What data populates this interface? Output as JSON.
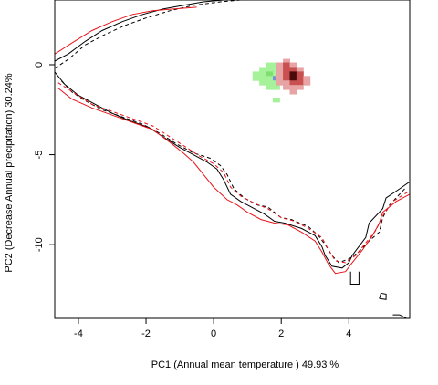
{
  "chart_data": {
    "type": "contour-density",
    "xlabel": "PC1 (Annual mean temperature ) 49.93 %",
    "ylabel": "PC2 (Decrease Annual precipitation) 30.24%",
    "xlim": [
      -4.7,
      5.8
    ],
    "ylim": [
      -14.1,
      3.6
    ],
    "x_ticks": [
      -4,
      -2,
      0,
      2,
      4
    ],
    "y_ticks": [
      0,
      -5,
      -10
    ],
    "grid": false,
    "legend": "none",
    "colors": {
      "black": "#000000",
      "red": "#e8141a",
      "green": "#a6f29a",
      "green_dark": "#7fe070",
      "blue": "#7a8fd6",
      "density_low": "#e8a4a4",
      "density_mid": "#c85050",
      "density_high": "#4a0a0a"
    },
    "contours": [
      {
        "color": "black",
        "style": "solid",
        "points": [
          [
            -4.7,
            0.2
          ],
          [
            -4.3,
            0.6
          ],
          [
            -3.8,
            1.3
          ],
          [
            -3.3,
            1.9
          ],
          [
            -2.7,
            2.4
          ],
          [
            -2.1,
            2.8
          ],
          [
            -1.5,
            3.1
          ],
          [
            -0.9,
            3.3
          ],
          [
            -0.3,
            3.5
          ],
          [
            0.3,
            3.6
          ]
        ]
      },
      {
        "color": "black",
        "style": "solid",
        "points": [
          [
            -4.7,
            -0.4
          ],
          [
            -4.4,
            -1.1
          ],
          [
            -4.0,
            -1.7
          ],
          [
            -3.5,
            -2.2
          ],
          [
            -3.0,
            -2.7
          ],
          [
            -2.5,
            -3.1
          ],
          [
            -1.9,
            -3.5
          ],
          [
            -1.5,
            -4.0
          ],
          [
            -1.0,
            -4.6
          ],
          [
            -0.6,
            -5.0
          ],
          [
            -0.2,
            -5.4
          ],
          [
            0.1,
            -5.8
          ],
          [
            0.3,
            -6.4
          ],
          [
            0.5,
            -7.2
          ],
          [
            0.8,
            -7.6
          ],
          [
            1.2,
            -8.0
          ],
          [
            1.5,
            -8.3
          ],
          [
            1.8,
            -8.7
          ],
          [
            2.1,
            -8.8
          ],
          [
            2.6,
            -9.1
          ],
          [
            3.0,
            -9.5
          ],
          [
            3.2,
            -10.1
          ],
          [
            3.3,
            -10.6
          ],
          [
            3.5,
            -11.2
          ],
          [
            3.8,
            -11.3
          ],
          [
            4.0,
            -11.0
          ],
          [
            4.1,
            -10.6
          ],
          [
            4.3,
            -10.1
          ],
          [
            4.5,
            -9.6
          ],
          [
            4.6,
            -8.8
          ],
          [
            5.0,
            -8.0
          ],
          [
            5.1,
            -7.4
          ],
          [
            5.5,
            -6.9
          ],
          [
            5.8,
            -6.5
          ]
        ]
      },
      {
        "color": "black",
        "style": "solid",
        "points": [
          [
            4.05,
            -11.5
          ],
          [
            4.05,
            -12.2
          ],
          [
            4.3,
            -12.2
          ],
          [
            4.3,
            -11.5
          ]
        ]
      },
      {
        "color": "black",
        "style": "solid",
        "points": [
          [
            4.9,
            -13.0
          ],
          [
            4.95,
            -12.7
          ],
          [
            5.1,
            -12.75
          ],
          [
            5.1,
            -13.05
          ],
          [
            4.9,
            -13.0
          ]
        ]
      },
      {
        "color": "black",
        "style": "solid",
        "points": [
          [
            5.3,
            -13.9
          ],
          [
            5.5,
            -13.9
          ],
          [
            5.7,
            -14.1
          ]
        ]
      },
      {
        "color": "black",
        "style": "dashed",
        "points": [
          [
            -4.7,
            -0.2
          ],
          [
            -4.3,
            0.3
          ],
          [
            -3.8,
            1.1
          ],
          [
            -3.2,
            1.7
          ],
          [
            -2.6,
            2.2
          ],
          [
            -2.0,
            2.6
          ],
          [
            -1.3,
            3.0
          ],
          [
            -0.6,
            3.3
          ],
          [
            0.2,
            3.5
          ],
          [
            0.8,
            3.6
          ]
        ]
      },
      {
        "color": "black",
        "style": "dashed",
        "points": [
          [
            -4.5,
            -0.9
          ],
          [
            -4.2,
            -1.5
          ],
          [
            -3.8,
            -2.0
          ],
          [
            -3.3,
            -2.5
          ],
          [
            -2.7,
            -2.9
          ],
          [
            -2.1,
            -3.3
          ],
          [
            -1.6,
            -3.8
          ],
          [
            -1.1,
            -4.4
          ],
          [
            -0.6,
            -4.9
          ],
          [
            -0.1,
            -5.2
          ],
          [
            0.2,
            -5.6
          ],
          [
            0.4,
            -6.1
          ],
          [
            0.6,
            -6.9
          ],
          [
            0.9,
            -7.4
          ],
          [
            1.3,
            -7.8
          ],
          [
            1.6,
            -7.9
          ],
          [
            2.0,
            -8.5
          ],
          [
            2.3,
            -8.6
          ],
          [
            2.8,
            -9.0
          ],
          [
            3.1,
            -9.5
          ],
          [
            3.3,
            -10.0
          ],
          [
            3.5,
            -10.6
          ],
          [
            3.7,
            -11.0
          ],
          [
            4.0,
            -10.8
          ],
          [
            4.3,
            -10.4
          ],
          [
            4.6,
            -9.8
          ],
          [
            4.9,
            -9.3
          ],
          [
            5.0,
            -8.5
          ],
          [
            5.2,
            -7.8
          ],
          [
            5.5,
            -7.2
          ],
          [
            5.7,
            -6.8
          ]
        ]
      },
      {
        "color": "red",
        "style": "solid",
        "points": [
          [
            -4.7,
            0.6
          ],
          [
            -4.2,
            1.2
          ],
          [
            -3.6,
            1.9
          ],
          [
            -3.0,
            2.4
          ],
          [
            -2.4,
            2.8
          ],
          [
            -1.8,
            3.0
          ],
          [
            -1.2,
            3.1
          ],
          [
            -0.5,
            3.2
          ]
        ]
      },
      {
        "color": "red",
        "style": "solid",
        "points": [
          [
            -4.6,
            -1.3
          ],
          [
            -4.2,
            -1.9
          ],
          [
            -3.6,
            -2.4
          ],
          [
            -3.0,
            -2.8
          ],
          [
            -2.4,
            -3.2
          ],
          [
            -1.8,
            -3.6
          ],
          [
            -1.3,
            -4.3
          ],
          [
            -0.9,
            -4.9
          ],
          [
            -0.6,
            -5.4
          ],
          [
            -0.3,
            -6.1
          ],
          [
            0.0,
            -6.8
          ],
          [
            0.4,
            -7.5
          ],
          [
            0.7,
            -7.8
          ],
          [
            1.0,
            -8.2
          ],
          [
            1.4,
            -8.6
          ],
          [
            1.8,
            -8.8
          ],
          [
            2.2,
            -8.9
          ],
          [
            2.6,
            -9.3
          ],
          [
            3.0,
            -9.8
          ],
          [
            3.2,
            -10.4
          ],
          [
            3.4,
            -11.1
          ],
          [
            3.6,
            -11.6
          ],
          [
            3.9,
            -11.5
          ],
          [
            4.1,
            -11.0
          ],
          [
            4.4,
            -10.3
          ],
          [
            4.7,
            -9.5
          ],
          [
            4.9,
            -8.8
          ],
          [
            5.0,
            -8.2
          ],
          [
            5.4,
            -7.6
          ],
          [
            5.8,
            -7.2
          ]
        ]
      },
      {
        "color": "red",
        "style": "dashed",
        "points": [
          [
            -4.6,
            -1.0
          ],
          [
            -4.1,
            -1.6
          ],
          [
            -3.6,
            -2.2
          ],
          [
            -3.0,
            -2.6
          ],
          [
            -2.4,
            -3.0
          ],
          [
            -1.8,
            -3.4
          ],
          [
            -1.3,
            -4.0
          ],
          [
            -0.8,
            -4.6
          ],
          [
            -0.4,
            -5.1
          ],
          [
            0.0,
            -5.5
          ],
          [
            0.3,
            -6.0
          ],
          [
            0.5,
            -6.8
          ],
          [
            0.8,
            -7.3
          ],
          [
            1.2,
            -7.7
          ],
          [
            1.6,
            -8.0
          ],
          [
            2.0,
            -8.5
          ],
          [
            2.4,
            -8.7
          ],
          [
            2.8,
            -9.1
          ],
          [
            3.2,
            -9.6
          ],
          [
            3.4,
            -10.3
          ],
          [
            3.6,
            -10.9
          ],
          [
            3.9,
            -11.0
          ],
          [
            4.2,
            -10.6
          ],
          [
            4.5,
            -9.9
          ],
          [
            4.8,
            -9.2
          ],
          [
            5.0,
            -8.4
          ],
          [
            5.3,
            -7.6
          ],
          [
            5.8,
            -7.0
          ]
        ]
      }
    ],
    "density_cells": [
      {
        "x": 1.65,
        "y": 0.0,
        "c": "green"
      },
      {
        "x": 1.85,
        "y": 0.0,
        "c": "green"
      },
      {
        "x": 1.45,
        "y": -0.25,
        "c": "green"
      },
      {
        "x": 1.65,
        "y": -0.25,
        "c": "green"
      },
      {
        "x": 1.85,
        "y": -0.25,
        "c": "green"
      },
      {
        "x": 1.25,
        "y": -0.5,
        "c": "green"
      },
      {
        "x": 1.45,
        "y": -0.5,
        "c": "green"
      },
      {
        "x": 1.65,
        "y": -0.5,
        "c": "green_dark"
      },
      {
        "x": 1.85,
        "y": -0.5,
        "c": "green"
      },
      {
        "x": 1.25,
        "y": -0.75,
        "c": "green"
      },
      {
        "x": 1.45,
        "y": -0.75,
        "c": "green"
      },
      {
        "x": 1.65,
        "y": -0.75,
        "c": "green"
      },
      {
        "x": 1.85,
        "y": -0.75,
        "c": "blue"
      },
      {
        "x": 1.45,
        "y": -1.0,
        "c": "green"
      },
      {
        "x": 1.65,
        "y": -1.0,
        "c": "green"
      },
      {
        "x": 1.85,
        "y": -1.0,
        "c": "green"
      },
      {
        "x": 1.65,
        "y": -1.25,
        "c": "green"
      },
      {
        "x": 1.85,
        "y": -1.25,
        "c": "green"
      },
      {
        "x": 1.85,
        "y": -1.95,
        "c": "green"
      },
      {
        "x": 2.15,
        "y": 0.2,
        "c": "density_low"
      },
      {
        "x": 1.95,
        "y": 0.0,
        "c": "density_low"
      },
      {
        "x": 2.15,
        "y": 0.0,
        "c": "density_mid"
      },
      {
        "x": 2.35,
        "y": 0.0,
        "c": "density_low"
      },
      {
        "x": 1.95,
        "y": -0.25,
        "c": "density_low"
      },
      {
        "x": 2.15,
        "y": -0.25,
        "c": "density_mid"
      },
      {
        "x": 2.35,
        "y": -0.25,
        "c": "density_mid"
      },
      {
        "x": 2.55,
        "y": -0.25,
        "c": "density_low"
      },
      {
        "x": 1.95,
        "y": -0.5,
        "c": "density_low"
      },
      {
        "x": 2.15,
        "y": -0.5,
        "c": "density_mid"
      },
      {
        "x": 2.35,
        "y": -0.5,
        "c": "density_high"
      },
      {
        "x": 2.55,
        "y": -0.5,
        "c": "density_mid"
      },
      {
        "x": 1.95,
        "y": -0.75,
        "c": "density_low"
      },
      {
        "x": 2.15,
        "y": -0.75,
        "c": "density_mid"
      },
      {
        "x": 2.35,
        "y": -0.75,
        "c": "density_high"
      },
      {
        "x": 2.55,
        "y": -0.75,
        "c": "density_mid"
      },
      {
        "x": 2.75,
        "y": -0.75,
        "c": "density_low"
      },
      {
        "x": 1.95,
        "y": -1.0,
        "c": "density_low"
      },
      {
        "x": 2.15,
        "y": -1.0,
        "c": "density_low"
      },
      {
        "x": 2.35,
        "y": -1.0,
        "c": "density_mid"
      },
      {
        "x": 2.55,
        "y": -1.0,
        "c": "density_mid"
      },
      {
        "x": 2.75,
        "y": -1.0,
        "c": "density_low"
      },
      {
        "x": 2.15,
        "y": -1.25,
        "c": "density_low"
      },
      {
        "x": 2.35,
        "y": -1.25,
        "c": "density_low"
      },
      {
        "x": 2.55,
        "y": -1.25,
        "c": "density_low"
      },
      {
        "x": 2.35,
        "y": -1.5,
        "c": "density_low"
      }
    ]
  }
}
